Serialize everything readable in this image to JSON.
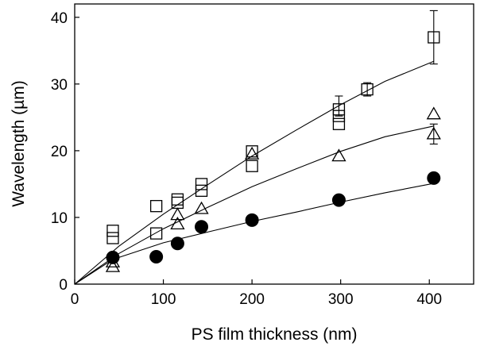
{
  "chart_data": {
    "type": "scatter",
    "xlabel": "PS film thickness (nm)",
    "ylabel": "Wavelength (µm)",
    "xlim": [
      0,
      450
    ],
    "ylim": [
      0,
      42
    ],
    "xticks": [
      0,
      100,
      200,
      300,
      400
    ],
    "yticks": [
      0,
      10,
      20,
      30,
      40
    ],
    "grid": false,
    "series": [
      {
        "marker": "open-square",
        "points": [
          {
            "x": 43,
            "y": 6.9
          },
          {
            "x": 43,
            "y": 8.0
          },
          {
            "x": 92,
            "y": 7.6
          },
          {
            "x": 92,
            "y": 11.7
          },
          {
            "x": 116,
            "y": 12.7
          },
          {
            "x": 116,
            "y": 12.2
          },
          {
            "x": 143,
            "y": 14.0
          },
          {
            "x": 143,
            "y": 15.0
          },
          {
            "x": 200,
            "y": 17.7
          },
          {
            "x": 200,
            "y": 19.9
          },
          {
            "x": 298,
            "y": 24.0
          },
          {
            "x": 298,
            "y": 25.2
          },
          {
            "x": 298,
            "y": 26.2
          },
          {
            "x": 330,
            "y": 29.2
          },
          {
            "x": 405,
            "y": 37.0
          }
        ],
        "errors": [
          {
            "x": 298,
            "y": 26.2,
            "lo": 25.2,
            "hi": 28.2
          },
          {
            "x": 330,
            "y": 29.2,
            "lo": 28.2,
            "hi": 30.2
          },
          {
            "x": 405,
            "y": 37.0,
            "lo": 33.0,
            "hi": 41.0
          }
        ],
        "fit": [
          [
            0,
            0
          ],
          [
            50,
            5.7
          ],
          [
            100,
            10.5
          ],
          [
            150,
            14.9
          ],
          [
            200,
            19.2
          ],
          [
            250,
            23.1
          ],
          [
            300,
            26.9
          ],
          [
            350,
            30.4
          ],
          [
            405,
            33.4
          ]
        ]
      },
      {
        "marker": "open-triangle",
        "points": [
          {
            "x": 43,
            "y": 2.6
          },
          {
            "x": 43,
            "y": 3.3
          },
          {
            "x": 116,
            "y": 9.0
          },
          {
            "x": 116,
            "y": 10.4
          },
          {
            "x": 143,
            "y": 11.3
          },
          {
            "x": 200,
            "y": 19.5
          },
          {
            "x": 298,
            "y": 19.2
          },
          {
            "x": 405,
            "y": 22.5
          },
          {
            "x": 405,
            "y": 25.5
          }
        ],
        "errors": [
          {
            "x": 405,
            "y": 22.5,
            "lo": 21.0,
            "hi": 24.0
          }
        ],
        "fit": [
          [
            0,
            0
          ],
          [
            50,
            4.6
          ],
          [
            100,
            8.3
          ],
          [
            150,
            11.5
          ],
          [
            200,
            14.6
          ],
          [
            250,
            17.3
          ],
          [
            300,
            19.9
          ],
          [
            350,
            22.1
          ],
          [
            405,
            23.7
          ]
        ]
      },
      {
        "marker": "filled-circle",
        "points": [
          {
            "x": 43,
            "y": 4.0
          },
          {
            "x": 92,
            "y": 4.1
          },
          {
            "x": 116,
            "y": 6.1
          },
          {
            "x": 143,
            "y": 8.6
          },
          {
            "x": 200,
            "y": 9.6
          },
          {
            "x": 298,
            "y": 12.6
          },
          {
            "x": 405,
            "y": 15.9
          }
        ],
        "errors": [],
        "fit": [
          [
            0,
            0
          ],
          [
            43,
            3.7
          ],
          [
            100,
            6.2
          ],
          [
            150,
            7.8
          ],
          [
            200,
            9.4
          ],
          [
            250,
            10.8
          ],
          [
            300,
            12.3
          ],
          [
            350,
            13.7
          ],
          [
            405,
            15.1
          ]
        ]
      }
    ]
  }
}
